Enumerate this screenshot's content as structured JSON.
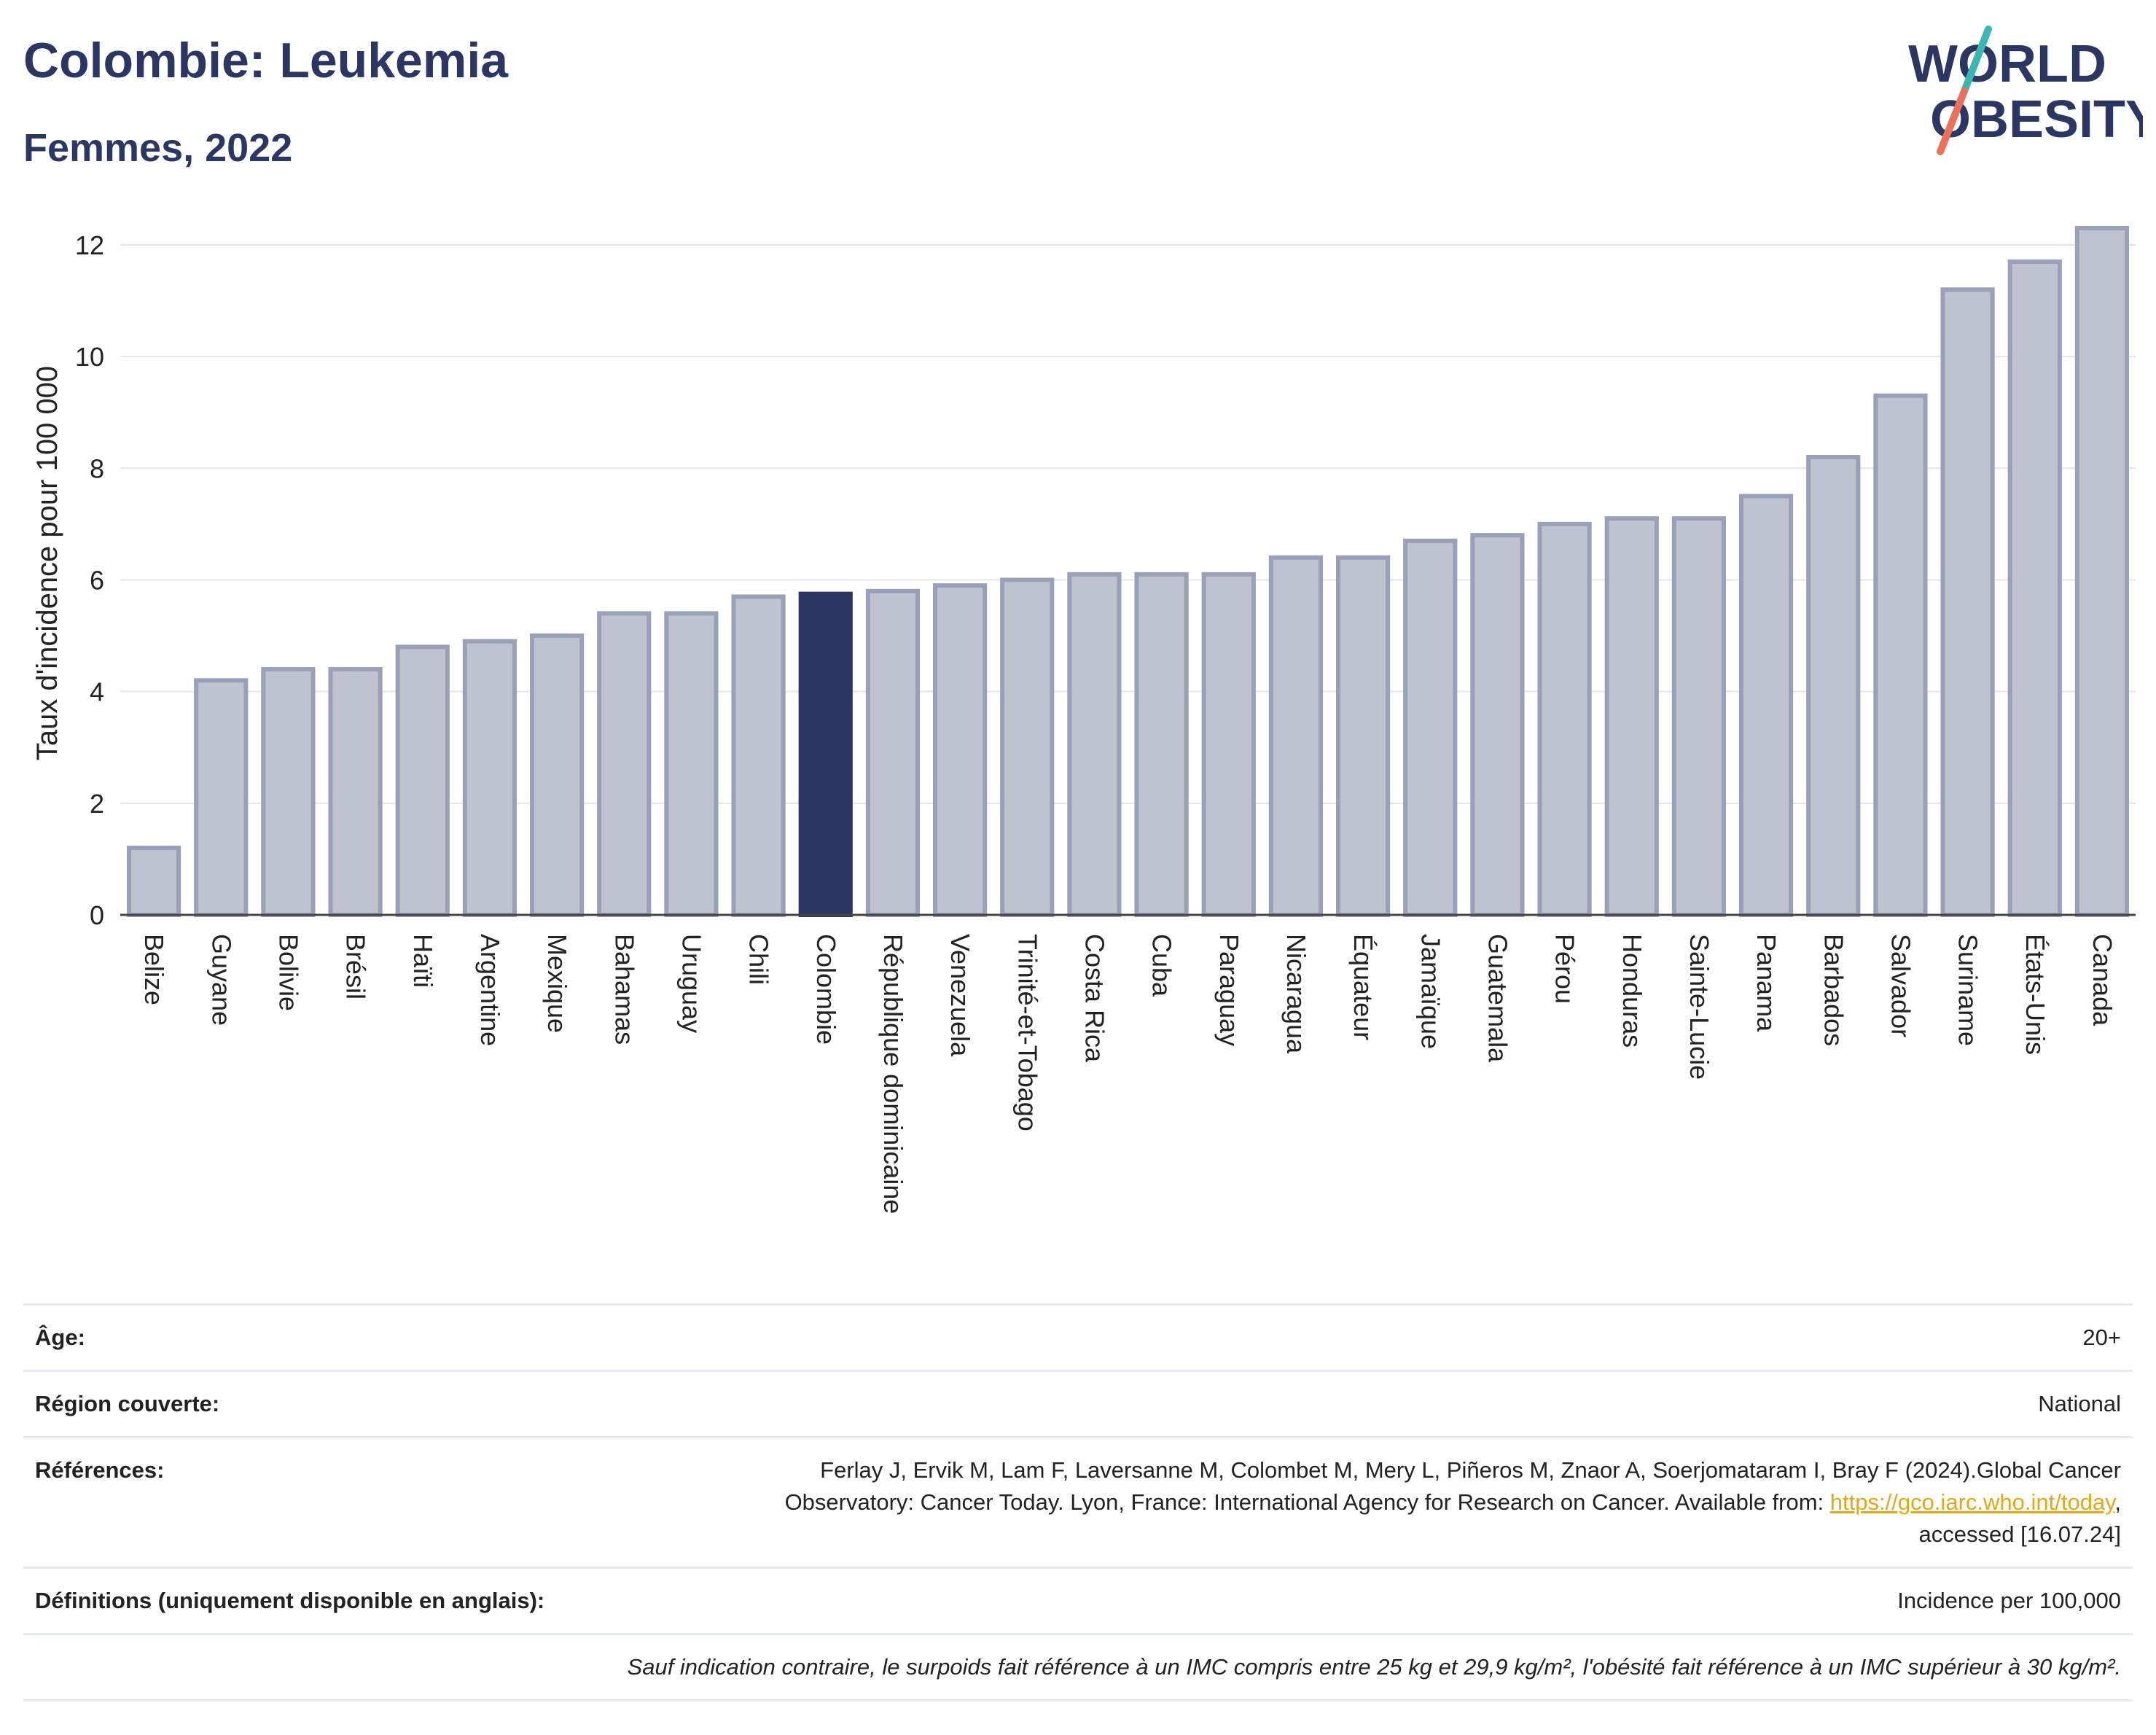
{
  "header": {
    "title": "Colombie: Leukemia",
    "subtitle": "Femmes, 2022"
  },
  "logo": {
    "line1": "WORLD",
    "line2": "OBESITY",
    "colors": {
      "text": "#2b3663",
      "slash_top": "#3bb6b0",
      "slash_bottom": "#e8735a"
    }
  },
  "chart_data": {
    "type": "bar",
    "ylabel": "Taux d'incidence pour 100 000",
    "xlabel": "",
    "ylim": [
      0,
      12.6
    ],
    "yticks": [
      0,
      2,
      4,
      6,
      8,
      10,
      12
    ],
    "grid": true,
    "highlight": "Colombie",
    "colors": {
      "bar": "#bfc3d0",
      "bar_edge": "#9aa0b8",
      "highlight": "#2b3663"
    },
    "categories": [
      "Belize",
      "Guyane",
      "Bolivie",
      "Brésil",
      "Haïti",
      "Argentine",
      "Mexique",
      "Bahamas",
      "Uruguay",
      "Chili",
      "Colombie",
      "République dominicaine",
      "Venezuela",
      "Trinité-et-Tobago",
      "Costa Rica",
      "Cuba",
      "Paraguay",
      "Nicaragua",
      "Équateur",
      "Jamaïque",
      "Guatemala",
      "Pérou",
      "Honduras",
      "Sainte-Lucie",
      "Panama",
      "Barbados",
      "Salvador",
      "Suriname",
      "États-Unis",
      "Canada"
    ],
    "values": [
      1.2,
      4.2,
      4.4,
      4.4,
      4.8,
      4.9,
      5.0,
      5.4,
      5.4,
      5.7,
      5.75,
      5.8,
      5.9,
      6.0,
      6.1,
      6.1,
      6.1,
      6.4,
      6.4,
      6.7,
      6.8,
      7.0,
      7.1,
      7.1,
      7.5,
      8.2,
      9.3,
      11.2,
      11.7,
      12.3
    ]
  },
  "info": {
    "age_label": "Âge:",
    "age_value": "20+",
    "region_label": "Région couverte:",
    "region_value": "National",
    "refs_label": "Références:",
    "refs_text_1": "Ferlay J, Ervik M, Lam F, Laversanne M, Colombet M, Mery L, Piñeros M, Znaor A, Soerjomataram I, Bray F (2024).Global Cancer",
    "refs_text_2": "Observatory: Cancer Today. Lyon, France: International Agency for Research on Cancer. Available from: ",
    "refs_link": "https://gco.iarc.who.int/today",
    "refs_text_3": ",",
    "refs_text_4": "accessed [16.07.24]",
    "defs_label": "Définitions (uniquement disponible en anglais):",
    "defs_value": "Incidence per 100,000",
    "note": "Sauf indication contraire, le surpoids fait référence à un IMC compris entre 25 kg et 29,9 kg/m², l'obésité fait référence à un IMC supérieur à 30 kg/m²."
  }
}
